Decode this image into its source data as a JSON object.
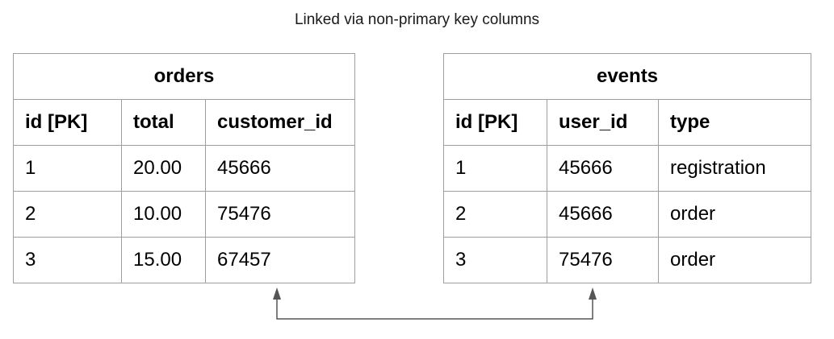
{
  "caption": "Linked via non-primary key columns",
  "tables": [
    {
      "name": "orders",
      "columns": [
        "id [PK]",
        "total",
        "customer_id"
      ],
      "rows": [
        [
          "1",
          "20.00",
          "45666"
        ],
        [
          "2",
          "10.00",
          "75476"
        ],
        [
          "3",
          "15.00",
          "67457"
        ]
      ]
    },
    {
      "name": "events",
      "columns": [
        "id [PK]",
        "user_id",
        "type"
      ],
      "rows": [
        [
          "1",
          "45666",
          "registration"
        ],
        [
          "2",
          "45666",
          "order"
        ],
        [
          "3",
          "75476",
          "order"
        ]
      ]
    }
  ],
  "colors": {
    "border": "#9e9e9e",
    "connector": "#555555"
  }
}
